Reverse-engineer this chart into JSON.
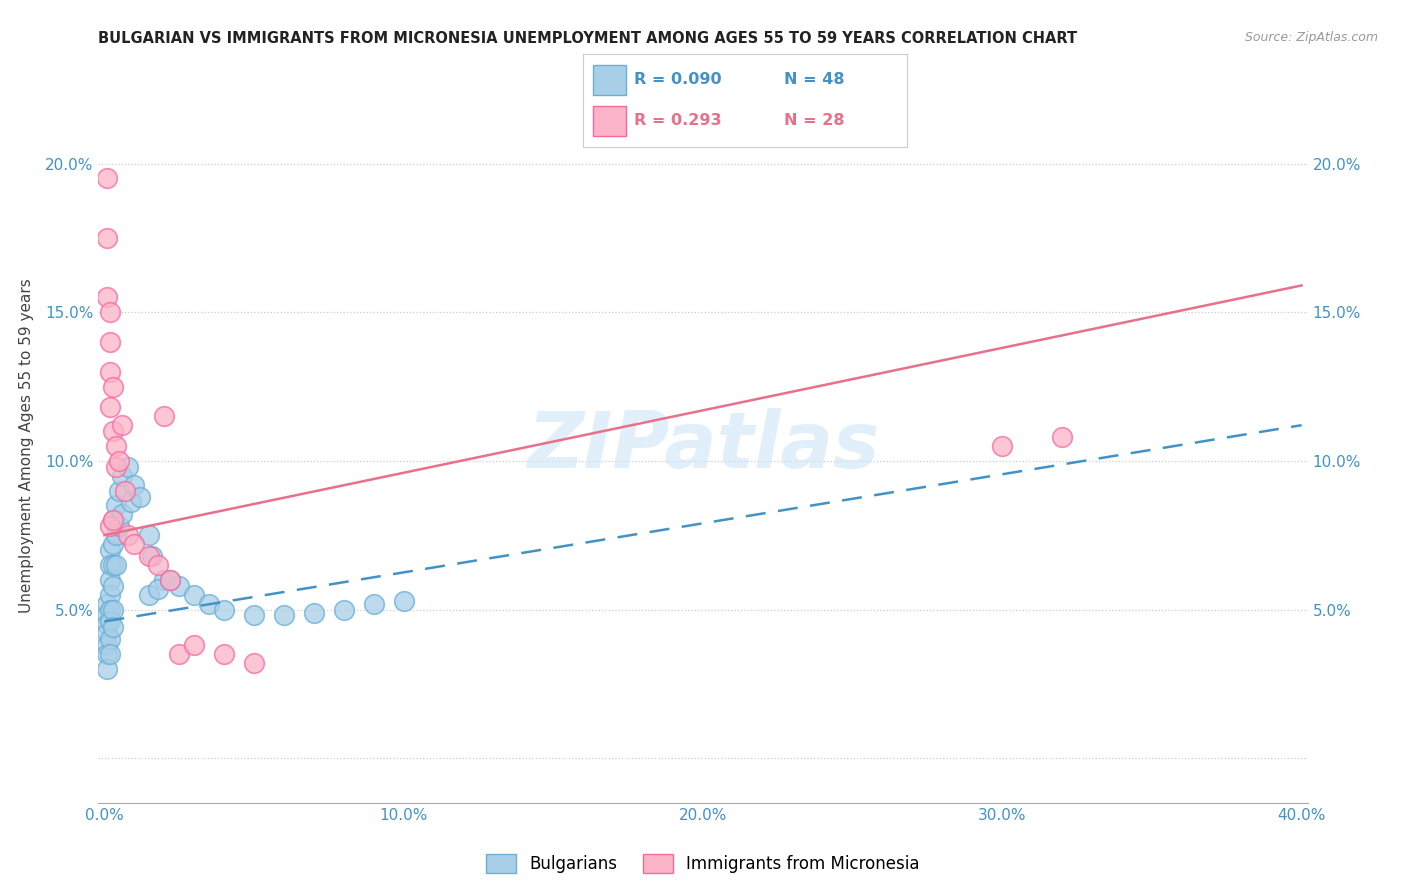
{
  "title": "BULGARIAN VS IMMIGRANTS FROM MICRONESIA UNEMPLOYMENT AMONG AGES 55 TO 59 YEARS CORRELATION CHART",
  "source": "Source: ZipAtlas.com",
  "ylabel": "Unemployment Among Ages 55 to 59 years",
  "xlim": [
    -0.002,
    0.402
  ],
  "ylim": [
    -0.015,
    0.225
  ],
  "x_ticks": [
    0.0,
    0.1,
    0.2,
    0.3,
    0.4
  ],
  "x_tick_labels": [
    "0.0%",
    "10.0%",
    "20.0%",
    "30.0%",
    "40.0%"
  ],
  "y_ticks": [
    0.0,
    0.05,
    0.1,
    0.15,
    0.2
  ],
  "y_tick_labels": [
    "",
    "5.0%",
    "10.0%",
    "15.0%",
    "20.0%"
  ],
  "blue_color": "#a8cfe8",
  "blue_edge_color": "#6baed6",
  "pink_color": "#fbb4c7",
  "pink_edge_color": "#f768a1",
  "blue_line_color": "#4292c6",
  "pink_line_color": "#e8708a",
  "watermark": "ZIPatlas",
  "legend_blue_R": "R = 0.090",
  "legend_blue_N": "N = 48",
  "legend_pink_R": "R = 0.293",
  "legend_pink_N": "N = 28",
  "bulgarians_label": "Bulgarians",
  "micronesia_label": "Immigrants from Micronesia",
  "blue_scatter_x": [
    0.001,
    0.001,
    0.001,
    0.001,
    0.001,
    0.001,
    0.001,
    0.002,
    0.002,
    0.002,
    0.002,
    0.002,
    0.002,
    0.002,
    0.002,
    0.003,
    0.003,
    0.003,
    0.003,
    0.003,
    0.003,
    0.004,
    0.004,
    0.004,
    0.005,
    0.005,
    0.006,
    0.006,
    0.008,
    0.009,
    0.01,
    0.012,
    0.015,
    0.016,
    0.02,
    0.025,
    0.03,
    0.035,
    0.04,
    0.05,
    0.06,
    0.07,
    0.08,
    0.09,
    0.1,
    0.015,
    0.018,
    0.022
  ],
  "blue_scatter_y": [
    0.052,
    0.048,
    0.045,
    0.042,
    0.038,
    0.035,
    0.03,
    0.07,
    0.065,
    0.06,
    0.055,
    0.05,
    0.046,
    0.04,
    0.035,
    0.08,
    0.072,
    0.065,
    0.058,
    0.05,
    0.044,
    0.085,
    0.075,
    0.065,
    0.09,
    0.078,
    0.095,
    0.082,
    0.098,
    0.086,
    0.092,
    0.088,
    0.075,
    0.068,
    0.06,
    0.058,
    0.055,
    0.052,
    0.05,
    0.048,
    0.048,
    0.049,
    0.05,
    0.052,
    0.053,
    0.055,
    0.057,
    0.06
  ],
  "pink_scatter_x": [
    0.001,
    0.001,
    0.001,
    0.002,
    0.002,
    0.002,
    0.002,
    0.003,
    0.003,
    0.004,
    0.004,
    0.005,
    0.006,
    0.007,
    0.008,
    0.01,
    0.015,
    0.018,
    0.02,
    0.022,
    0.025,
    0.03,
    0.04,
    0.05,
    0.3,
    0.32,
    0.002,
    0.003
  ],
  "pink_scatter_y": [
    0.195,
    0.175,
    0.155,
    0.15,
    0.14,
    0.13,
    0.118,
    0.125,
    0.11,
    0.105,
    0.098,
    0.1,
    0.112,
    0.09,
    0.075,
    0.072,
    0.068,
    0.065,
    0.115,
    0.06,
    0.035,
    0.038,
    0.035,
    0.032,
    0.105,
    0.108,
    0.078,
    0.08
  ],
  "blue_trend_intercept": 0.046,
  "blue_trend_slope": 0.165,
  "pink_trend_intercept": 0.075,
  "pink_trend_slope": 0.21
}
